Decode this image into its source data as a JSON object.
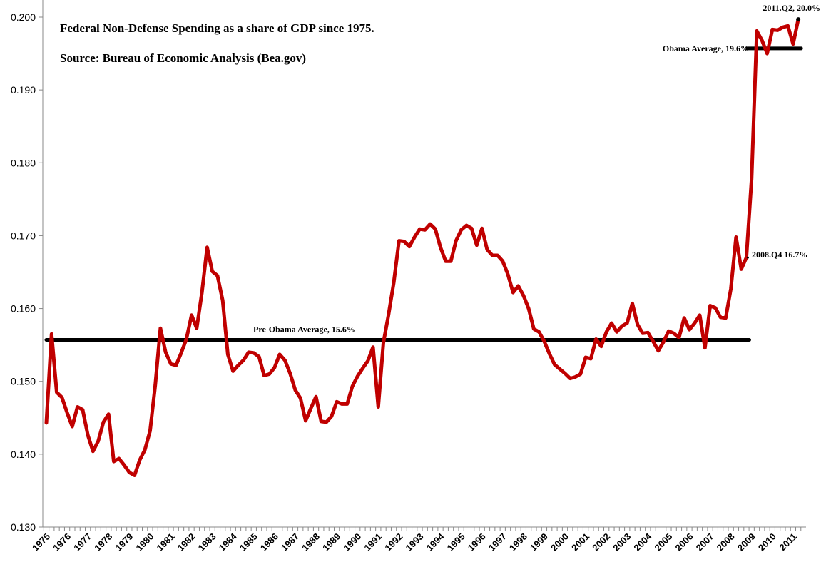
{
  "chart_data": {
    "type": "line",
    "title": "Federal Non-Defense Spending as a share of GDP since 1975.",
    "subtitle": "Source: Bureau of Economic Analysis (Bea.gov)",
    "xlabel": "",
    "ylabel": "",
    "ylim": [
      0.13,
      0.2
    ],
    "yticks": [
      "0.130",
      "0.140",
      "0.150",
      "0.160",
      "0.170",
      "0.180",
      "0.190",
      "0.200"
    ],
    "xtick_labels": [
      "1975",
      "1976",
      "1977",
      "1978",
      "1979",
      "1980",
      "1981",
      "1982",
      "1983",
      "1984",
      "1985",
      "1986",
      "1987",
      "1988",
      "1989",
      "1990",
      "1991",
      "1992",
      "1993",
      "1994",
      "1995",
      "1996",
      "1997",
      "1998",
      "1999",
      "2000",
      "2001",
      "2002",
      "2003",
      "2004",
      "2005",
      "2006",
      "2007",
      "2008",
      "2009",
      "2010",
      "2011"
    ],
    "x_start": "1975.Q1",
    "x_frequency": "quarterly",
    "grid": false,
    "legend": "none",
    "line_color": "#c00000",
    "values": [
      0.1443,
      0.1565,
      0.1485,
      0.1478,
      0.1457,
      0.1438,
      0.1465,
      0.1461,
      0.1426,
      0.1404,
      0.1418,
      0.1444,
      0.1455,
      0.139,
      0.1394,
      0.1385,
      0.1375,
      0.1371,
      0.1392,
      0.1406,
      0.1432,
      0.1495,
      0.1573,
      0.154,
      0.1524,
      0.1522,
      0.1539,
      0.1558,
      0.1591,
      0.1573,
      0.1622,
      0.1684,
      0.1651,
      0.1645,
      0.1611,
      0.1537,
      0.1514,
      0.1522,
      0.1529,
      0.154,
      0.1539,
      0.1534,
      0.1508,
      0.151,
      0.1519,
      0.1537,
      0.1529,
      0.1511,
      0.1488,
      0.1477,
      0.1446,
      0.1463,
      0.1479,
      0.1445,
      0.1444,
      0.1452,
      0.1472,
      0.1469,
      0.1469,
      0.1493,
      0.1507,
      0.1518,
      0.1528,
      0.1547,
      0.1465,
      0.1553,
      0.1592,
      0.1636,
      0.1693,
      0.1692,
      0.1685,
      0.1698,
      0.1709,
      0.1708,
      0.1716,
      0.1709,
      0.1684,
      0.1665,
      0.1665,
      0.1693,
      0.1708,
      0.1714,
      0.171,
      0.1687,
      0.171,
      0.1681,
      0.1673,
      0.1673,
      0.1665,
      0.1647,
      0.1622,
      0.1631,
      0.1618,
      0.16,
      0.1572,
      0.1568,
      0.1555,
      0.1538,
      0.1523,
      0.1517,
      0.1511,
      0.1504,
      0.1506,
      0.151,
      0.1533,
      0.1531,
      0.1558,
      0.1548,
      0.1568,
      0.158,
      0.1568,
      0.1576,
      0.158,
      0.1607,
      0.1578,
      0.1566,
      0.1567,
      0.1555,
      0.1542,
      0.1554,
      0.1569,
      0.1566,
      0.156,
      0.1587,
      0.1571,
      0.158,
      0.1591,
      0.1546,
      0.1604,
      0.1601,
      0.1588,
      0.1587,
      0.1627,
      0.1698,
      0.1654,
      0.167,
      0.1778,
      0.1981,
      0.1968,
      0.195,
      0.1983,
      0.1982,
      0.1986,
      0.1988,
      0.1963,
      0.1997
    ],
    "reference_lines": [
      {
        "label": "Pre-Obama Average, 15.6%",
        "value": 0.1557,
        "from": "1975.Q1",
        "to": "2008.Q4"
      },
      {
        "label": "Obama Average, 19.6%",
        "value": 0.1957,
        "from": "2009.Q1",
        "to": "2011.Q2"
      }
    ],
    "annotations": [
      {
        "label": "2011.Q2, 20.0%",
        "at": "2011.Q2"
      },
      {
        "label": "2008.Q4 16.7%",
        "at": "2008.Q4"
      }
    ]
  }
}
